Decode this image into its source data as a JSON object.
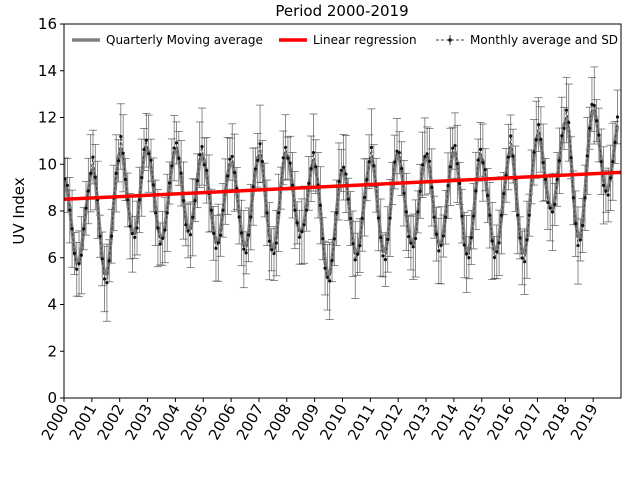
{
  "chart_data": {
    "type": "line",
    "title": "Period 2000-2019",
    "xlabel": "",
    "ylabel": "UV Index",
    "xlim": [
      2000,
      2020.0
    ],
    "ylim": [
      0,
      16
    ],
    "x_ticks": [
      "2000",
      "2001",
      "2002",
      "2003",
      "2004",
      "2005",
      "2006",
      "2007",
      "2008",
      "2009",
      "2010",
      "2011",
      "2012",
      "2013",
      "2014",
      "2015",
      "2016",
      "2017",
      "2018",
      "2019"
    ],
    "y_ticks": [
      "0",
      "2",
      "4",
      "6",
      "8",
      "10",
      "12",
      "14",
      "16"
    ],
    "grid": false,
    "legend_position": "top",
    "legend": [
      {
        "label": "Quarterly Moving average",
        "color": "#808080",
        "style": "thick-line"
      },
      {
        "label": "Linear regression",
        "color": "#ff0000",
        "style": "thick-line"
      },
      {
        "label": "Monthly average and SD",
        "color": "#444444",
        "style": "dashed-errorbar"
      }
    ],
    "seasonal_summer_peaks": [
      9.6,
      10.4,
      11.1,
      10.6,
      10.9,
      10.2,
      10.4,
      10.8,
      10.4,
      9.9,
      10.1,
      10.8,
      10.4,
      10.6,
      10.8,
      10.3,
      11.3,
      11.6,
      12.5
    ],
    "seasonal_winter_troughs": [
      5.6,
      5.0,
      6.8,
      6.6,
      7.0,
      6.5,
      6.3,
      6.1,
      6.9,
      5.0,
      6.0,
      6.0,
      6.4,
      6.3,
      6.0,
      6.1,
      5.9,
      7.9,
      6.5,
      8.7
    ],
    "series": [
      {
        "name": "Linear regression",
        "x": [
          2000,
          2020.0
        ],
        "y": [
          8.5,
          9.65
        ],
        "color": "#ff0000"
      }
    ]
  }
}
